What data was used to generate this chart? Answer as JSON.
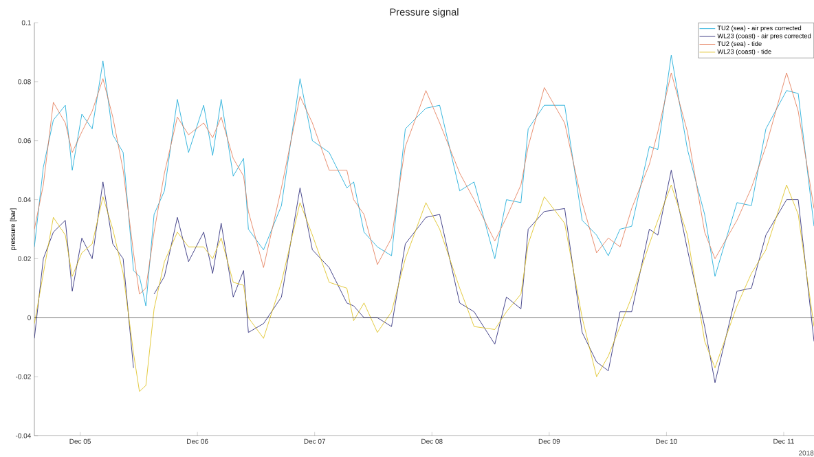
{
  "chart_data": {
    "type": "line",
    "title": "Pressure signal",
    "ylabel": "pressure [bar]",
    "annotations": [
      "2018"
    ],
    "xlim": [
      "2018-12-04T14:38",
      "2018-12-11T06:12"
    ],
    "xticks": [
      {
        "value": "2018-12-05",
        "label": "Dec 05"
      },
      {
        "value": "2018-12-06",
        "label": "Dec 06"
      },
      {
        "value": "2018-12-07",
        "label": "Dec 07"
      },
      {
        "value": "2018-12-08",
        "label": "Dec 08"
      },
      {
        "value": "2018-12-09",
        "label": "Dec 09"
      },
      {
        "value": "2018-12-10",
        "label": "Dec 10"
      },
      {
        "value": "2018-12-11",
        "label": "Dec 11"
      }
    ],
    "ylim": [
      -0.04,
      0.1
    ],
    "yticks": [
      -0.04,
      -0.02,
      0,
      0.02,
      0.04,
      0.06,
      0.08,
      0.1
    ],
    "legend": "top right",
    "ref_lines": [
      {
        "axis": "y",
        "value": 0,
        "color": "#000000"
      }
    ],
    "x": [
      "2018-12-04T14:38",
      "2018-12-04T16:28",
      "2018-12-04T18:31",
      "2018-12-04T20:58",
      "2018-12-04T22:23",
      "2018-12-05T00:21",
      "2018-12-05T02:28",
      "2018-12-05T04:40",
      "2018-12-05T06:41",
      "2018-12-05T08:48",
      "2018-12-05T10:55",
      "2018-12-05T12:08",
      "2018-12-05T13:27",
      "2018-12-05T15:08",
      "2018-12-05T17:15",
      "2018-12-05T19:54",
      "2018-12-05T22:11",
      "2018-12-06T01:17",
      "2018-12-06T03:07",
      "2018-12-06T04:52",
      "2018-12-06T07:20",
      "2018-12-06T09:27",
      "2018-12-06T10:26",
      "2018-12-06T13:32",
      "2018-12-06T17:12",
      "2018-12-06T21:00",
      "2018-12-06T23:32",
      "2018-12-07T02:58",
      "2018-12-07T06:35",
      "2018-12-07T07:59",
      "2018-12-07T10:06",
      "2018-12-07T12:50",
      "2018-12-07T15:44",
      "2018-12-07T18:33",
      "2018-12-07T22:46",
      "2018-12-08T01:35",
      "2018-12-08T05:41",
      "2018-12-08T08:38",
      "2018-12-08T12:52",
      "2018-12-08T15:15",
      "2018-12-08T18:13",
      "2018-12-08T19:42",
      "2018-12-08T23:00",
      "2018-12-09T03:10",
      "2018-12-09T06:45",
      "2018-12-09T09:42",
      "2018-12-09T12:06",
      "2018-12-09T14:30",
      "2018-12-09T16:53",
      "2018-12-09T20:30",
      "2018-12-09T22:14",
      "2018-12-10T00:59",
      "2018-12-10T04:18",
      "2018-12-10T07:49",
      "2018-12-10T09:56",
      "2018-12-10T14:26",
      "2018-12-10T17:23",
      "2018-12-10T20:21",
      "2018-12-11T00:35",
      "2018-12-11T02:58",
      "2018-12-11T06:12"
    ],
    "series": [
      {
        "name": "TU2 (sea) - air pres corrected",
        "color": "#0aa5d6",
        "values": [
          0.024,
          0.051,
          0.067,
          0.072,
          0.05,
          0.069,
          0.064,
          0.087,
          0.062,
          0.056,
          0.016,
          0.014,
          0.004,
          0.035,
          0.043,
          0.074,
          0.056,
          0.072,
          0.055,
          0.074,
          0.048,
          0.054,
          0.03,
          0.023,
          0.038,
          0.081,
          0.06,
          0.056,
          0.044,
          0.046,
          0.029,
          0.024,
          0.021,
          0.064,
          0.071,
          0.072,
          0.043,
          0.046,
          0.02,
          0.04,
          0.039,
          0.064,
          0.072,
          0.072,
          0.033,
          0.028,
          0.021,
          0.03,
          0.031,
          0.058,
          0.057,
          0.089,
          0.057,
          0.035,
          0.014,
          0.039,
          0.038,
          0.064,
          0.077,
          0.076,
          0.031
        ]
      },
      {
        "name": "WL23 (coast) - air pres corrected",
        "color": "#1c1a70",
        "values": [
          -0.007,
          0.02,
          0.029,
          0.033,
          0.009,
          0.027,
          0.02,
          0.046,
          0.025,
          0.02,
          -0.017,
          null,
          null,
          0.008,
          0.014,
          0.034,
          0.019,
          0.029,
          0.015,
          0.032,
          0.007,
          0.016,
          -0.005,
          -0.002,
          0.007,
          0.044,
          0.023,
          0.017,
          0.005,
          0.004,
          0.0,
          0.0,
          -0.003,
          0.025,
          0.034,
          0.035,
          0.005,
          0.002,
          -0.009,
          0.007,
          0.003,
          0.03,
          0.036,
          0.037,
          -0.005,
          -0.015,
          -0.018,
          0.002,
          0.002,
          0.03,
          0.028,
          0.05,
          0.023,
          -0.003,
          -0.022,
          0.009,
          0.01,
          0.028,
          0.04,
          0.04,
          -0.008
        ]
      },
      {
        "name": "TU2 (sea) - tide",
        "color": "#e2734e",
        "values": [
          0.03,
          0.045,
          0.073,
          0.066,
          0.056,
          0.063,
          0.07,
          0.081,
          0.068,
          0.05,
          0.022,
          0.008,
          0.01,
          0.029,
          0.049,
          0.068,
          0.062,
          0.066,
          0.061,
          0.068,
          0.054,
          0.048,
          0.036,
          0.017,
          0.044,
          0.075,
          0.066,
          0.05,
          0.05,
          0.04,
          0.035,
          0.018,
          0.027,
          0.058,
          0.077,
          0.066,
          0.049,
          0.04,
          0.026,
          0.034,
          0.045,
          0.058,
          0.078,
          0.066,
          0.039,
          0.022,
          0.027,
          0.024,
          0.037,
          0.052,
          0.063,
          0.083,
          0.063,
          0.029,
          0.02,
          0.033,
          0.044,
          0.058,
          0.083,
          0.07,
          0.037
        ]
      },
      {
        "name": "WL23 (coast) - tide",
        "color": "#dcbc10",
        "values": [
          -0.002,
          0.015,
          0.034,
          0.028,
          0.014,
          0.022,
          0.025,
          0.041,
          0.03,
          0.015,
          -0.012,
          -0.025,
          -0.023,
          0.003,
          0.019,
          0.029,
          0.024,
          0.024,
          0.02,
          0.027,
          0.012,
          0.011,
          0.0,
          -0.007,
          0.012,
          0.039,
          0.028,
          0.012,
          0.01,
          -0.001,
          0.005,
          -0.005,
          0.002,
          0.02,
          0.039,
          0.03,
          0.01,
          -0.003,
          -0.004,
          0.002,
          0.008,
          0.025,
          0.041,
          0.032,
          0.0,
          -0.02,
          -0.013,
          -0.003,
          0.007,
          0.025,
          0.033,
          0.045,
          0.028,
          -0.008,
          -0.017,
          0.004,
          0.015,
          0.023,
          0.045,
          0.035,
          -0.003
        ]
      }
    ]
  }
}
